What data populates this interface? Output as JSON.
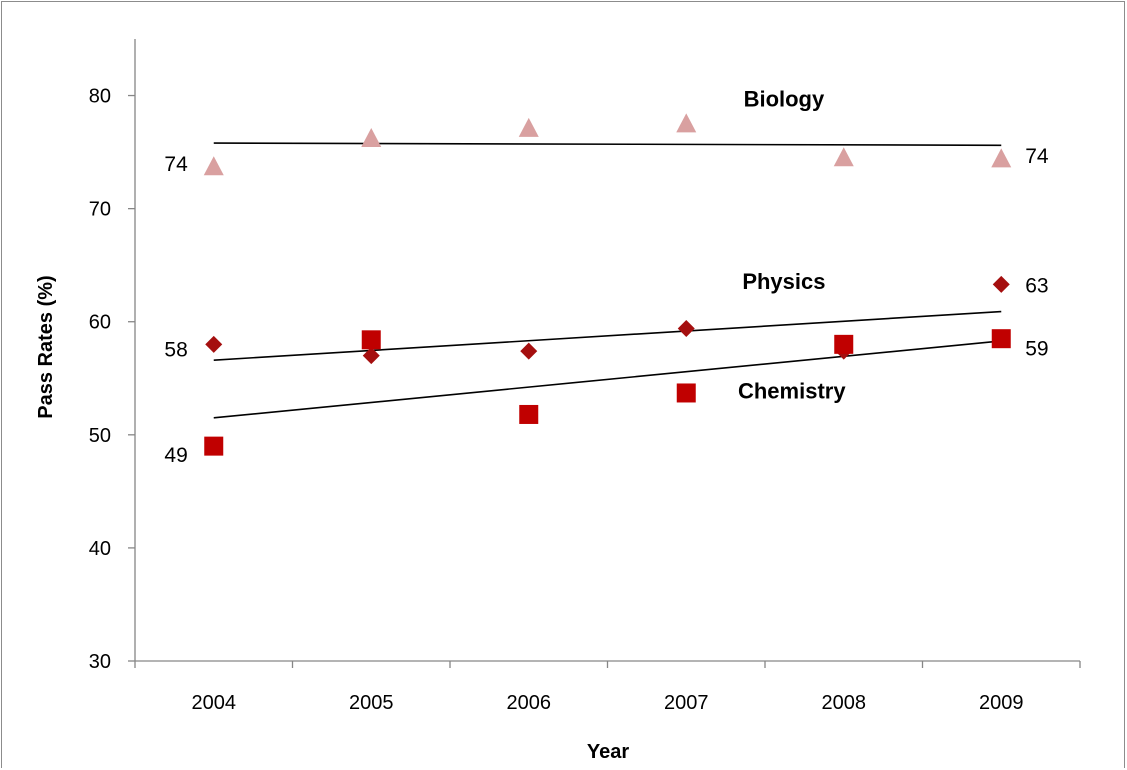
{
  "chart_data": {
    "type": "scatter",
    "title": "",
    "xlabel": "Year",
    "ylabel": "Pass Rates (%)",
    "categories": [
      "2004",
      "2005",
      "2006",
      "2007",
      "2008",
      "2009"
    ],
    "yticks": [
      "30",
      "40",
      "50",
      "60",
      "70",
      "80"
    ],
    "ylim": [
      30,
      85
    ],
    "grid": false,
    "legend": "none",
    "series": [
      {
        "name": "Biology",
        "marker": "triangle",
        "color": "#d9a0a0",
        "values": [
          73.7,
          76.2,
          77.1,
          77.5,
          74.5,
          74.4
        ],
        "trend": [
          75.8,
          75.6
        ],
        "labels": {
          "first": "74",
          "last": "74"
        }
      },
      {
        "name": "Physics",
        "marker": "diamond",
        "color": "#a50f0f",
        "values": [
          58.0,
          57.0,
          57.4,
          59.4,
          57.4,
          63.3
        ],
        "trend": [
          56.6,
          60.9
        ],
        "labels": {
          "first": "58",
          "last": "63"
        }
      },
      {
        "name": "Chemistry",
        "marker": "square",
        "color": "#c00000",
        "values": [
          49.0,
          58.4,
          51.8,
          53.7,
          58.0,
          58.5
        ],
        "trend": [
          51.5,
          58.3
        ],
        "labels": {
          "first": "49",
          "last": "59"
        }
      }
    ]
  }
}
